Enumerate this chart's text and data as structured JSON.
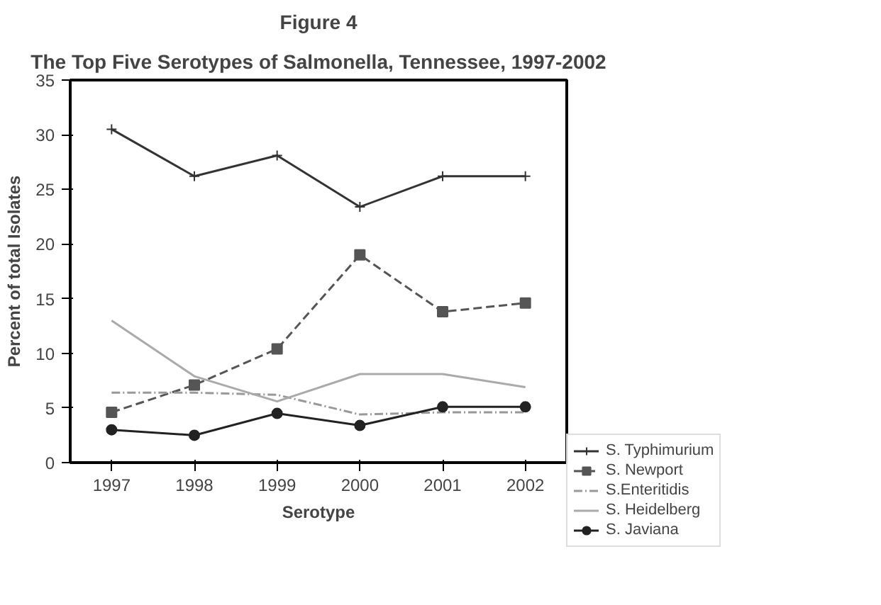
{
  "chart_data": {
    "type": "line",
    "title": "Figure 4",
    "subtitle": "The Top Five Serotypes of Salmonella, Tennessee, 1997-2002",
    "xlabel": "Serotype",
    "ylabel": "Percent of total Isolates",
    "categories": [
      "1997",
      "1998",
      "1999",
      "2000",
      "2001",
      "2002"
    ],
    "series": [
      {
        "name": "S. Typhimurium",
        "color": "#333333",
        "marker": "cross",
        "line_style": "solid",
        "values": [
          30.5,
          26.2,
          28.1,
          23.4,
          26.2,
          26.2
        ]
      },
      {
        "name": "S. Newport",
        "color": "#555555",
        "marker": "square",
        "line_style": "dashed",
        "values": [
          4.6,
          7.1,
          10.4,
          19.0,
          13.8,
          14.6
        ]
      },
      {
        "name": "S.Enteritidis",
        "color": "#999999",
        "marker": "none",
        "line_style": "dotted",
        "values": [
          6.4,
          6.4,
          6.2,
          4.4,
          4.6,
          4.6
        ]
      },
      {
        "name": "S. Heidelberg",
        "color": "#aaaaaa",
        "marker": "none",
        "line_style": "solid",
        "values": [
          13.0,
          7.9,
          5.6,
          8.1,
          8.1,
          6.9
        ]
      },
      {
        "name": "S. Javiana",
        "color": "#222222",
        "marker": "circle",
        "line_style": "solid",
        "values": [
          3.0,
          2.5,
          4.5,
          3.4,
          5.1,
          5.1
        ]
      }
    ],
    "ylim": [
      0,
      35
    ],
    "yticks": [
      0,
      5,
      10,
      15,
      20,
      25,
      30,
      35
    ],
    "grid": false,
    "legend": "right"
  }
}
